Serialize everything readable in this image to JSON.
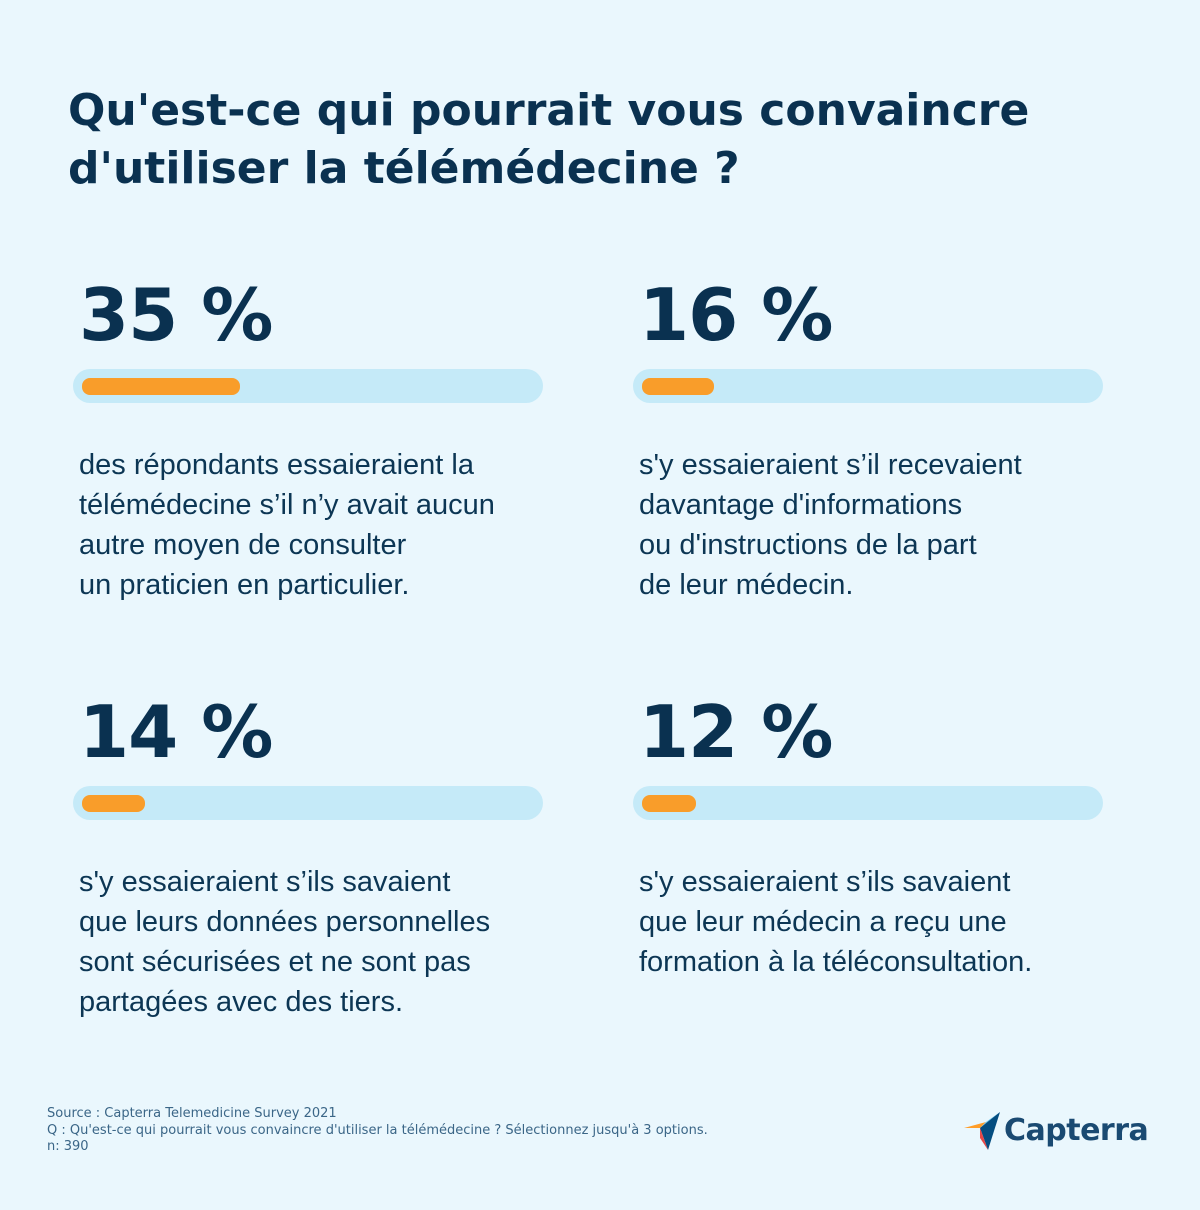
{
  "title": {
    "line1": "Qu'est-ce qui pourrait vous convaincre",
    "line2": "d'utiliser la télémédecine ?"
  },
  "colors": {
    "background": "#eaf7fd",
    "text": "#0a3150",
    "bar_track": "#c5eaf8",
    "bar_fill": "#f99d2a"
  },
  "chart_data": {
    "type": "bar",
    "title": "Qu'est-ce qui pourrait vous convaincre d'utiliser la télémédecine ?",
    "categories": [
      "des répondants essaieraient la télémédecine s’il n’y avait aucun autre moyen de consulter un praticien en particulier.",
      "s'y essaieraient s’il recevaient davantage d'informations ou d'instructions de la part de leur médecin.",
      "s'y essaieraient s’ils savaient que leurs données personnelles sont sécurisées et ne sont pas partagées avec des tiers.",
      "s'y essaieraient s’ils savaient que leur médecin a reçu une formation à la téléconsultation."
    ],
    "values": [
      35,
      16,
      14,
      12
    ],
    "unit": "%",
    "ylim": [
      0,
      100
    ]
  },
  "cards": [
    {
      "value": 35,
      "label": "35 %",
      "lines": [
        "des répondants essaieraient la",
        "télémédecine s’il n’y avait aucun",
        "autre moyen de consulter",
        "un praticien en particulier."
      ]
    },
    {
      "value": 16,
      "label": "16 %",
      "lines": [
        "s'y essaieraient s’il recevaient",
        "davantage d'informations",
        "ou d'instructions de la part",
        "de leur médecin."
      ]
    },
    {
      "value": 14,
      "label": "14 %",
      "lines": [
        "s'y essaieraient s’ils savaient",
        "que leurs données personnelles",
        "sont sécurisées et ne sont pas",
        "partagées avec des tiers."
      ]
    },
    {
      "value": 12,
      "label": "12 %",
      "lines": [
        "s'y essaieraient s’ils savaient",
        "que leur médecin a reçu une",
        "formation à la téléconsultation."
      ]
    }
  ],
  "footer": {
    "source": "Source : Capterra Telemedicine Survey 2021",
    "question": "Q : Qu'est-ce qui pourrait vous convaincre d'utiliser la télémédecine ? Sélectionnez jusqu'à 3 options.",
    "n": "n: 390"
  },
  "logo": {
    "name": "Capterra",
    "icon": "capterra-arrow-icon"
  }
}
